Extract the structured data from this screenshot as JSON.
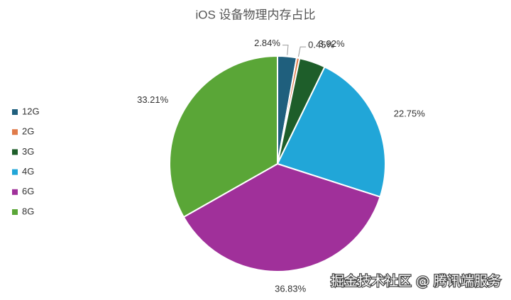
{
  "chart_data": {
    "type": "pie",
    "title": "iOS 设备物理内存占比",
    "categories": [
      "12G",
      "2G",
      "3G",
      "4G",
      "6G",
      "8G"
    ],
    "values": [
      2.84,
      0.45,
      3.92,
      22.75,
      36.83,
      33.21
    ],
    "value_labels": [
      "2.84%",
      "0.45%",
      "3.92%",
      "22.75%",
      "36.83%",
      "33.21%"
    ],
    "colors": [
      "#1f5f7d",
      "#e07b4a",
      "#1e5e2a",
      "#21a6d8",
      "#a0309a",
      "#5aa637"
    ],
    "legend": "left"
  },
  "watermark": "掘金技术社区 @ 腾讯端服务"
}
